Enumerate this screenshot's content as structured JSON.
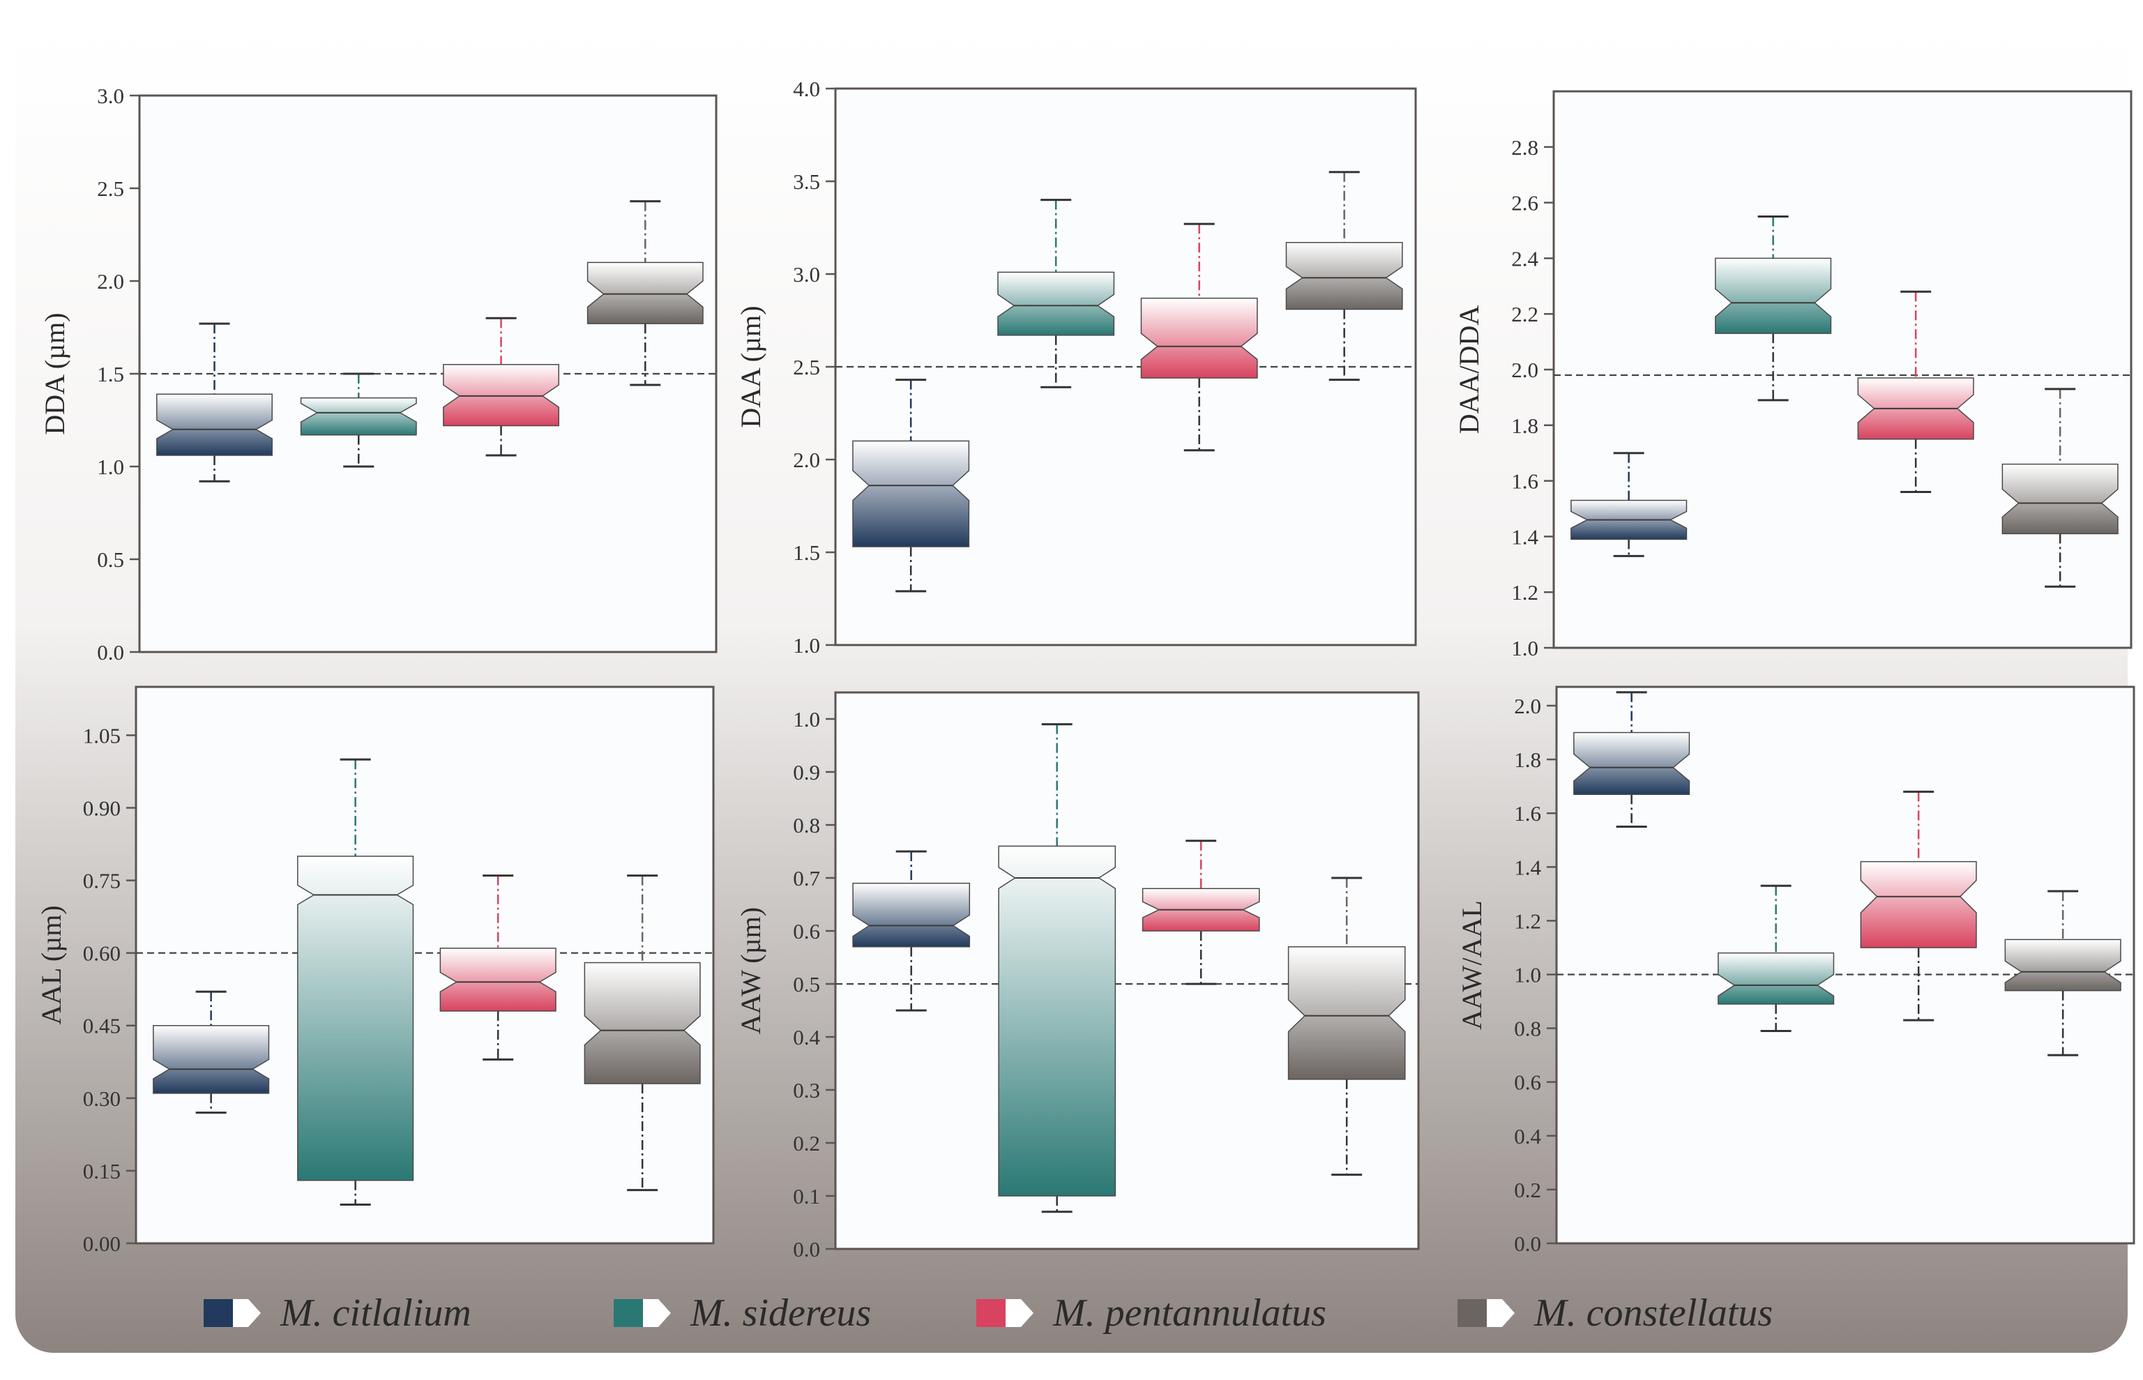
{
  "colors": {
    "citlalium": "#213a5d",
    "sidereus": "#2a7874",
    "pentannulatus": "#d8435f",
    "constellatus": "#6b6561",
    "frame": "#5b5552",
    "background_top": "#ffffff",
    "background_bottom": "#8d8480",
    "plot_bg": "#fbfcfe"
  },
  "legend": [
    {
      "label": "M. citlalium",
      "key": "citlalium",
      "icon": "legend-swatch-icon"
    },
    {
      "label": "M. sidereus",
      "key": "sidereus",
      "icon": "legend-swatch-icon"
    },
    {
      "label": "M. pentannulatus",
      "key": "pentannulatus",
      "icon": "legend-swatch-icon"
    },
    {
      "label": "M. constellatus",
      "key": "constellatus",
      "icon": "legend-swatch-icon"
    }
  ],
  "chart_data": [
    {
      "type": "boxplot",
      "ylabel": "DDA (µm)",
      "ylim": [
        0,
        3.0
      ],
      "reference_line": 1.5,
      "ticks": [
        "0.0",
        "0.5",
        "1.0",
        "1.5",
        "2.0",
        "2.5",
        "3.0"
      ],
      "series": [
        {
          "name": "M. citlalium",
          "key": "citlalium",
          "min": 0.92,
          "q1": 1.06,
          "median": 1.2,
          "q3": 1.39,
          "max": 1.77,
          "notch": 0.05
        },
        {
          "name": "M. sidereus",
          "key": "sidereus",
          "min": 1.0,
          "q1": 1.17,
          "median": 1.29,
          "q3": 1.37,
          "max": 1.5,
          "notch": 0.05
        },
        {
          "name": "M. pentannulatus",
          "key": "pentannulatus",
          "min": 1.06,
          "q1": 1.22,
          "median": 1.38,
          "q3": 1.55,
          "max": 1.8,
          "notch": 0.06
        },
        {
          "name": "M. constellatus",
          "key": "constellatus",
          "min": 1.44,
          "q1": 1.77,
          "median": 1.93,
          "q3": 2.1,
          "max": 2.43,
          "notch": 0.07
        }
      ]
    },
    {
      "type": "boxplot",
      "ylabel": "DAA (µm)",
      "ylim": [
        1.0,
        4.0
      ],
      "reference_line": 2.5,
      "ticks": [
        "1.0",
        "1.5",
        "2.0",
        "2.5",
        "3.0",
        "3.5",
        "4.0"
      ],
      "series": [
        {
          "name": "M. citlalium",
          "key": "citlalium",
          "min": 1.29,
          "q1": 1.53,
          "median": 1.86,
          "q3": 2.1,
          "max": 2.43,
          "notch": 0.08
        },
        {
          "name": "M. sidereus",
          "key": "sidereus",
          "min": 2.39,
          "q1": 2.67,
          "median": 2.83,
          "q3": 3.01,
          "max": 3.4,
          "notch": 0.06
        },
        {
          "name": "M. pentannulatus",
          "key": "pentannulatus",
          "min": 2.05,
          "q1": 2.44,
          "median": 2.61,
          "q3": 2.87,
          "max": 3.27,
          "notch": 0.07
        },
        {
          "name": "M. constellatus",
          "key": "constellatus",
          "min": 2.43,
          "q1": 2.81,
          "median": 2.98,
          "q3": 3.17,
          "max": 3.55,
          "notch": 0.06
        }
      ]
    },
    {
      "type": "boxplot",
      "ylabel": "DAA/DDA",
      "ylim": [
        1.0,
        3.0
      ],
      "reference_line": 1.98,
      "ticks": [
        "1.0",
        "1.2",
        "1.4",
        "1.6",
        "1.8",
        "2.0",
        "2.2",
        "2.4",
        "2.6",
        "2.8"
      ],
      "series": [
        {
          "name": "M. citlalium",
          "key": "citlalium",
          "min": 1.33,
          "q1": 1.39,
          "median": 1.46,
          "q3": 1.53,
          "max": 1.7,
          "notch": 0.03
        },
        {
          "name": "M. sidereus",
          "key": "sidereus",
          "min": 1.89,
          "q1": 2.13,
          "median": 2.24,
          "q3": 2.4,
          "max": 2.55,
          "notch": 0.05
        },
        {
          "name": "M. pentannulatus",
          "key": "pentannulatus",
          "min": 1.56,
          "q1": 1.75,
          "median": 1.86,
          "q3": 1.97,
          "max": 2.28,
          "notch": 0.05
        },
        {
          "name": "M. constellatus",
          "key": "constellatus",
          "min": 1.22,
          "q1": 1.41,
          "median": 1.52,
          "q3": 1.66,
          "max": 1.93,
          "notch": 0.05
        }
      ]
    },
    {
      "type": "boxplot",
      "ylabel": "AAL (µm)",
      "ylim": [
        0,
        1.15
      ],
      "reference_line": 0.6,
      "ticks": [
        "0.00",
        "0.15",
        "0.30",
        "0.45",
        "0.60",
        "0.75",
        "0.90",
        "1.05"
      ],
      "series": [
        {
          "name": "M. citlalium",
          "key": "citlalium",
          "min": 0.27,
          "q1": 0.31,
          "median": 0.36,
          "q3": 0.45,
          "max": 0.52,
          "notch": 0.02
        },
        {
          "name": "M. sidereus",
          "key": "sidereus",
          "min": 0.08,
          "q1": 0.13,
          "median": 0.72,
          "q3": 0.8,
          "max": 1.0,
          "notch": 0.02
        },
        {
          "name": "M. pentannulatus",
          "key": "pentannulatus",
          "min": 0.38,
          "q1": 0.48,
          "median": 0.54,
          "q3": 0.61,
          "max": 0.76,
          "notch": 0.02
        },
        {
          "name": "M. constellatus",
          "key": "constellatus",
          "min": 0.11,
          "q1": 0.33,
          "median": 0.44,
          "q3": 0.58,
          "max": 0.76,
          "notch": 0.03
        }
      ]
    },
    {
      "type": "boxplot",
      "ylabel": "AAW (µm)",
      "ylim": [
        0,
        1.05
      ],
      "reference_line": 0.5,
      "ticks": [
        "0.0",
        "0.1",
        "0.2",
        "0.3",
        "0.4",
        "0.5",
        "0.6",
        "0.7",
        "0.8",
        "0.9",
        "1.0"
      ],
      "series": [
        {
          "name": "M. citlalium",
          "key": "citlalium",
          "min": 0.45,
          "q1": 0.57,
          "median": 0.61,
          "q3": 0.69,
          "max": 0.75,
          "notch": 0.02
        },
        {
          "name": "M. sidereus",
          "key": "sidereus",
          "min": 0.07,
          "q1": 0.1,
          "median": 0.7,
          "q3": 0.76,
          "max": 0.99,
          "notch": 0.02
        },
        {
          "name": "M. pentannulatus",
          "key": "pentannulatus",
          "min": 0.5,
          "q1": 0.6,
          "median": 0.64,
          "q3": 0.68,
          "max": 0.77,
          "notch": 0.015
        },
        {
          "name": "M. constellatus",
          "key": "constellatus",
          "min": 0.14,
          "q1": 0.32,
          "median": 0.44,
          "q3": 0.57,
          "max": 0.7,
          "notch": 0.03
        }
      ]
    },
    {
      "type": "boxplot",
      "ylabel": "AAW/AAL",
      "ylim": [
        0,
        2.07
      ],
      "reference_line": 1.0,
      "ticks": [
        "0.0",
        "0.2",
        "0.4",
        "0.6",
        "0.8",
        "1.0",
        "1.2",
        "1.4",
        "1.6",
        "1.8",
        "2.0"
      ],
      "series": [
        {
          "name": "M. citlalium",
          "key": "citlalium",
          "min": 1.55,
          "q1": 1.67,
          "median": 1.77,
          "q3": 1.9,
          "max": 2.05,
          "notch": 0.05
        },
        {
          "name": "M. sidereus",
          "key": "sidereus",
          "min": 0.79,
          "q1": 0.89,
          "median": 0.96,
          "q3": 1.08,
          "max": 1.33,
          "notch": 0.04
        },
        {
          "name": "M. pentannulatus",
          "key": "pentannulatus",
          "min": 0.83,
          "q1": 1.1,
          "median": 1.29,
          "q3": 1.42,
          "max": 1.68,
          "notch": 0.06
        },
        {
          "name": "M. constellatus",
          "key": "constellatus",
          "min": 0.7,
          "q1": 0.94,
          "median": 1.01,
          "q3": 1.13,
          "max": 1.31,
          "notch": 0.04
        }
      ]
    }
  ]
}
